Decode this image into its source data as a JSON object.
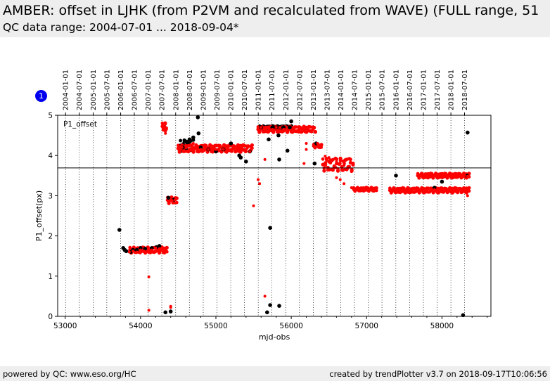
{
  "header": {
    "title": "AMBER: offset in LJHK (from P2VM and recalculated from WAVE) (FULL range, 51",
    "subtitle": "QC data range: 2004-07-01 ... 2018-09-04*"
  },
  "badge": {
    "label": "1",
    "color": "#0000ee"
  },
  "footer": {
    "left": "powered by QC: www.eso.org/HC",
    "right": "created by trendPlotter v3.7 on 2018-09-17T10:06:56"
  },
  "chart_data": {
    "type": "scatter",
    "xlabel": "mjd-obs",
    "ylabel": "P1_offset(px)",
    "panel_label": "P1_offset",
    "xlim": [
      52900,
      58650
    ],
    "ylim": [
      0,
      5
    ],
    "x_ticks": [
      53000,
      54000,
      55000,
      56000,
      57000,
      58000
    ],
    "y_ticks": [
      0,
      1,
      2,
      3,
      4,
      5
    ],
    "reference_line_y": 3.69,
    "grid": "vertical dotted lines at date ticks",
    "date_ticks": [
      {
        "label": "2004-01-01",
        "mjd": 53005
      },
      {
        "label": "2004-07-01",
        "mjd": 53187
      },
      {
        "label": "2005-01-01",
        "mjd": 53371
      },
      {
        "label": "2005-07-01",
        "mjd": 53552
      },
      {
        "label": "2006-01-01",
        "mjd": 53736
      },
      {
        "label": "2006-07-01",
        "mjd": 53917
      },
      {
        "label": "2007-01-01",
        "mjd": 54101
      },
      {
        "label": "2007-07-01",
        "mjd": 54282
      },
      {
        "label": "2008-01-01",
        "mjd": 54466
      },
      {
        "label": "2008-07-01",
        "mjd": 54648
      },
      {
        "label": "2009-01-01",
        "mjd": 54832
      },
      {
        "label": "2009-07-01",
        "mjd": 55013
      },
      {
        "label": "2010-01-01",
        "mjd": 55197
      },
      {
        "label": "2010-07-01",
        "mjd": 55378
      },
      {
        "label": "2011-01-01",
        "mjd": 55562
      },
      {
        "label": "2011-07-01",
        "mjd": 55743
      },
      {
        "label": "2012-01-01",
        "mjd": 55927
      },
      {
        "label": "2012-07-01",
        "mjd": 56109
      },
      {
        "label": "2013-01-01",
        "mjd": 56293
      },
      {
        "label": "2013-07-01",
        "mjd": 56474
      },
      {
        "label": "2014-01-01",
        "mjd": 56658
      },
      {
        "label": "2014-07-01",
        "mjd": 56839
      },
      {
        "label": "2015-01-01",
        "mjd": 57023
      },
      {
        "label": "2015-07-01",
        "mjd": 57204
      },
      {
        "label": "2016-01-01",
        "mjd": 57388
      },
      {
        "label": "2016-07-01",
        "mjd": 57570
      },
      {
        "label": "2017-01-01",
        "mjd": 57754
      },
      {
        "label": "2017-07-01",
        "mjd": 57935
      },
      {
        "label": "2018-01-01",
        "mjd": 58119
      },
      {
        "label": "2018-07-01",
        "mjd": 58300
      }
    ],
    "series": [
      {
        "color": "#000000",
        "points": [
          [
            53720,
            2.15
          ],
          [
            53770,
            1.7
          ],
          [
            53790,
            1.65
          ],
          [
            53810,
            1.62
          ],
          [
            53870,
            1.6
          ],
          [
            53900,
            1.65
          ],
          [
            53950,
            1.65
          ],
          [
            54000,
            1.7
          ],
          [
            54060,
            1.68
          ],
          [
            54150,
            1.7
          ],
          [
            54210,
            1.72
          ],
          [
            54250,
            1.75
          ],
          [
            54330,
            0.1
          ],
          [
            54400,
            0.12
          ],
          [
            54370,
            2.95
          ],
          [
            54440,
            2.9
          ],
          [
            54560,
            4.2
          ],
          [
            54600,
            4.35
          ],
          [
            54650,
            4.4
          ],
          [
            54700,
            4.45
          ],
          [
            54760,
            4.95
          ],
          [
            54770,
            4.55
          ],
          [
            54800,
            4.2
          ],
          [
            54900,
            4.15
          ],
          [
            55000,
            4.1
          ],
          [
            55100,
            4.15
          ],
          [
            55200,
            4.3
          ],
          [
            55310,
            4.0
          ],
          [
            55330,
            3.95
          ],
          [
            55400,
            3.85
          ],
          [
            55450,
            4.1
          ],
          [
            55600,
            4.7
          ],
          [
            55700,
            4.4
          ],
          [
            55750,
            4.7
          ],
          [
            55800,
            4.7
          ],
          [
            55850,
            4.7
          ],
          [
            55900,
            4.7
          ],
          [
            55980,
            4.7
          ],
          [
            56000,
            4.85
          ],
          [
            55830,
            4.5
          ],
          [
            55840,
            3.9
          ],
          [
            55720,
            2.2
          ],
          [
            55680,
            0.1
          ],
          [
            55720,
            0.28
          ],
          [
            55840,
            0.26
          ],
          [
            55950,
            4.12
          ],
          [
            56310,
            3.8
          ],
          [
            56330,
            4.3
          ],
          [
            57390,
            3.5
          ],
          [
            57900,
            3.2
          ],
          [
            58000,
            3.35
          ],
          [
            58330,
            3.5
          ],
          [
            58280,
            0.03
          ],
          [
            58340,
            4.57
          ]
        ]
      },
      {
        "color": "#ff0000",
        "points": [
          [
            53850,
            1.6
          ],
          [
            53900,
            1.62
          ],
          [
            53950,
            1.6
          ],
          [
            54000,
            1.65
          ],
          [
            54050,
            1.62
          ],
          [
            54100,
            1.6
          ],
          [
            54150,
            1.65
          ],
          [
            54200,
            1.7
          ],
          [
            54250,
            1.68
          ],
          [
            54300,
            1.7
          ],
          [
            54110,
            0.98
          ],
          [
            54110,
            0.15
          ],
          [
            54330,
            4.8
          ],
          [
            54330,
            4.6
          ],
          [
            54330,
            4.55
          ],
          [
            54400,
            0.25
          ],
          [
            54400,
            0.22
          ],
          [
            54380,
            2.85
          ],
          [
            54420,
            2.88
          ],
          [
            54460,
            2.9
          ],
          [
            54550,
            4.2
          ],
          [
            54600,
            4.25
          ],
          [
            54650,
            4.25
          ],
          [
            54700,
            4.3
          ],
          [
            54750,
            4.2
          ],
          [
            54800,
            4.15
          ],
          [
            54850,
            4.2
          ],
          [
            54900,
            4.15
          ],
          [
            54950,
            4.15
          ],
          [
            55000,
            4.15
          ],
          [
            55050,
            4.12
          ],
          [
            55100,
            4.15
          ],
          [
            55150,
            4.15
          ],
          [
            55200,
            4.15
          ],
          [
            55250,
            4.15
          ],
          [
            55300,
            4.1
          ],
          [
            55350,
            4.15
          ],
          [
            55400,
            4.1
          ],
          [
            55450,
            4.1
          ],
          [
            55500,
            2.75
          ],
          [
            55560,
            3.4
          ],
          [
            55580,
            3.3
          ],
          [
            55650,
            3.9
          ],
          [
            55650,
            0.5
          ],
          [
            55600,
            4.7
          ],
          [
            55650,
            4.7
          ],
          [
            55700,
            4.68
          ],
          [
            55750,
            4.65
          ],
          [
            55800,
            4.7
          ],
          [
            55850,
            4.7
          ],
          [
            55900,
            4.65
          ],
          [
            55950,
            4.62
          ],
          [
            56000,
            4.6
          ],
          [
            56050,
            4.6
          ],
          [
            56100,
            4.58
          ],
          [
            56150,
            4.6
          ],
          [
            56170,
            3.8
          ],
          [
            56200,
            4.3
          ],
          [
            56200,
            4.15
          ],
          [
            56300,
            4.25
          ],
          [
            56350,
            4.3
          ],
          [
            56400,
            4.2
          ],
          [
            56450,
            3.98
          ],
          [
            56500,
            3.95
          ],
          [
            56550,
            3.9
          ],
          [
            56600,
            3.85
          ],
          [
            56650,
            3.8
          ],
          [
            56700,
            3.75
          ],
          [
            56750,
            3.7
          ],
          [
            56800,
            3.6
          ],
          [
            56600,
            3.45
          ],
          [
            56650,
            3.4
          ],
          [
            56700,
            3.3
          ],
          [
            56800,
            3.2
          ],
          [
            56850,
            3.15
          ],
          [
            56900,
            3.15
          ],
          [
            56950,
            3.15
          ],
          [
            57000,
            3.15
          ],
          [
            57050,
            3.15
          ],
          [
            57100,
            3.15
          ],
          [
            57320,
            3.15
          ],
          [
            57400,
            3.1
          ],
          [
            57450,
            3.1
          ],
          [
            57500,
            3.1
          ],
          [
            57550,
            3.08
          ],
          [
            57600,
            3.1
          ],
          [
            57650,
            3.1
          ],
          [
            57700,
            3.1
          ],
          [
            57750,
            3.12
          ],
          [
            57800,
            3.15
          ],
          [
            57850,
            3.18
          ],
          [
            57900,
            3.15
          ],
          [
            57950,
            3.15
          ],
          [
            58000,
            3.15
          ],
          [
            58050,
            3.15
          ],
          [
            58100,
            3.15
          ],
          [
            58150,
            3.15
          ],
          [
            58200,
            3.15
          ],
          [
            58250,
            3.15
          ],
          [
            58300,
            3.12
          ],
          [
            58340,
            3.0
          ],
          [
            57700,
            3.5
          ],
          [
            57750,
            3.5
          ],
          [
            57800,
            3.5
          ],
          [
            57850,
            3.5
          ],
          [
            57900,
            3.52
          ],
          [
            57950,
            3.5
          ],
          [
            58000,
            3.52
          ],
          [
            58050,
            3.5
          ],
          [
            58100,
            3.5
          ],
          [
            58150,
            3.52
          ],
          [
            58200,
            3.5
          ],
          [
            58250,
            3.5
          ],
          [
            58300,
            3.5
          ],
          [
            58340,
            3.48
          ]
        ]
      }
    ],
    "dense_bands": [
      {
        "color": "#000000",
        "x0": 54530,
        "x1": 54700,
        "y0": 4.05,
        "y1": 4.45
      },
      {
        "color": "#000000",
        "x0": 55580,
        "x1": 56020,
        "y0": 4.65,
        "y1": 4.75
      },
      {
        "color": "#ff0000",
        "x0": 53860,
        "x1": 54350,
        "y0": 1.55,
        "y1": 1.75
      },
      {
        "color": "#ff0000",
        "x0": 54290,
        "x1": 54340,
        "y0": 4.6,
        "y1": 4.85
      },
      {
        "color": "#ff0000",
        "x0": 54360,
        "x1": 54480,
        "y0": 2.78,
        "y1": 3.0
      },
      {
        "color": "#ff0000",
        "x0": 54500,
        "x1": 55480,
        "y0": 4.05,
        "y1": 4.3
      },
      {
        "color": "#ff0000",
        "x0": 55560,
        "x1": 56320,
        "y0": 4.55,
        "y1": 4.75
      },
      {
        "color": "#ff0000",
        "x0": 56300,
        "x1": 56400,
        "y0": 4.18,
        "y1": 4.3
      },
      {
        "color": "#ff0000",
        "x0": 56420,
        "x1": 56820,
        "y0": 3.55,
        "y1": 4.0
      },
      {
        "color": "#ff0000",
        "x0": 56830,
        "x1": 57130,
        "y0": 3.1,
        "y1": 3.22
      },
      {
        "color": "#ff0000",
        "x0": 57310,
        "x1": 58360,
        "y0": 3.05,
        "y1": 3.22
      },
      {
        "color": "#ff0000",
        "x0": 57680,
        "x1": 58360,
        "y0": 3.42,
        "y1": 3.58
      }
    ]
  }
}
